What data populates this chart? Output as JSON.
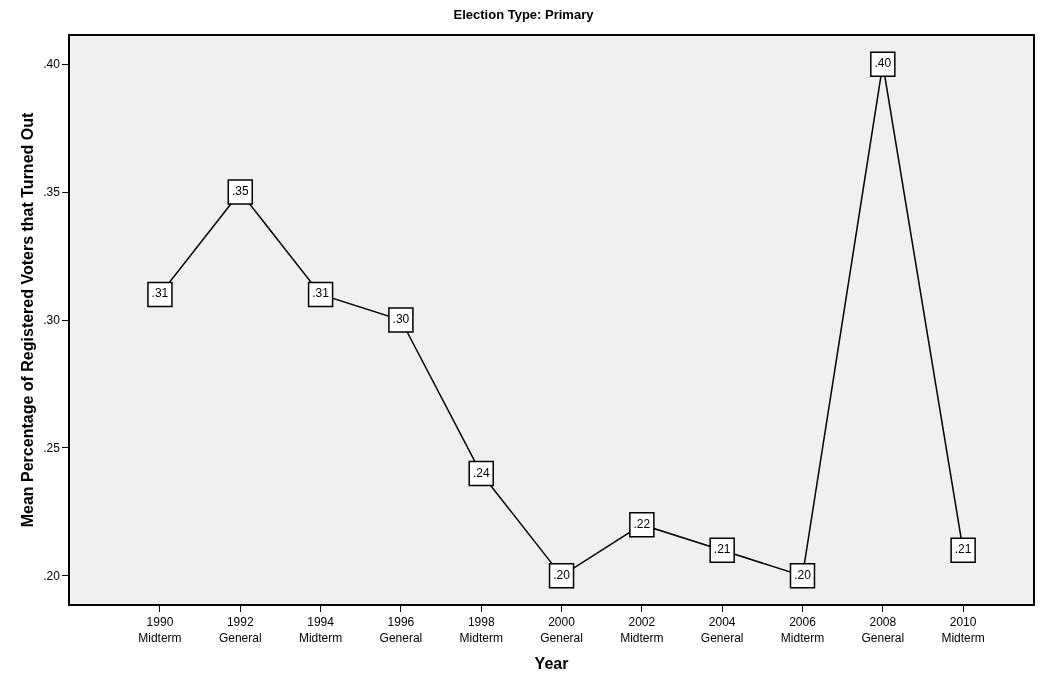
{
  "chart_data": {
    "type": "line",
    "title": "Election Type: Primary",
    "xlabel": "Year",
    "ylabel": "Mean Percentage of Registered Voters that Turned Out",
    "categories": [
      "1990\nMidterm",
      "1992\nGeneral",
      "1994\nMidterm",
      "1996\nGeneral",
      "1998\nMidterm",
      "2000\nGeneral",
      "2002\nMidterm",
      "2004\nGeneral",
      "2006\nMidterm",
      "2008\nGeneral",
      "2010\nMidterm"
    ],
    "series": [
      {
        "color": "#000000",
        "values": [
          0.31,
          0.35,
          0.31,
          0.3,
          0.24,
          0.2,
          0.22,
          0.21,
          0.2,
          0.4,
          0.21
        ],
        "value_labels": [
          ".31",
          ".35",
          ".31",
          ".30",
          ".24",
          ".20",
          ".22",
          ".21",
          ".20",
          ".40",
          ".21"
        ]
      }
    ],
    "ylim": [
      0.189,
      0.411
    ],
    "yticks": [
      {
        "value": 0.2,
        "label": ".20"
      },
      {
        "value": 0.25,
        "label": ".25"
      },
      {
        "value": 0.3,
        "label": ".30"
      },
      {
        "value": 0.35,
        "label": ".35"
      },
      {
        "value": 0.4,
        "label": ".40"
      }
    ],
    "grid": false,
    "legend": false,
    "marker": "square",
    "line_style": "solid"
  }
}
